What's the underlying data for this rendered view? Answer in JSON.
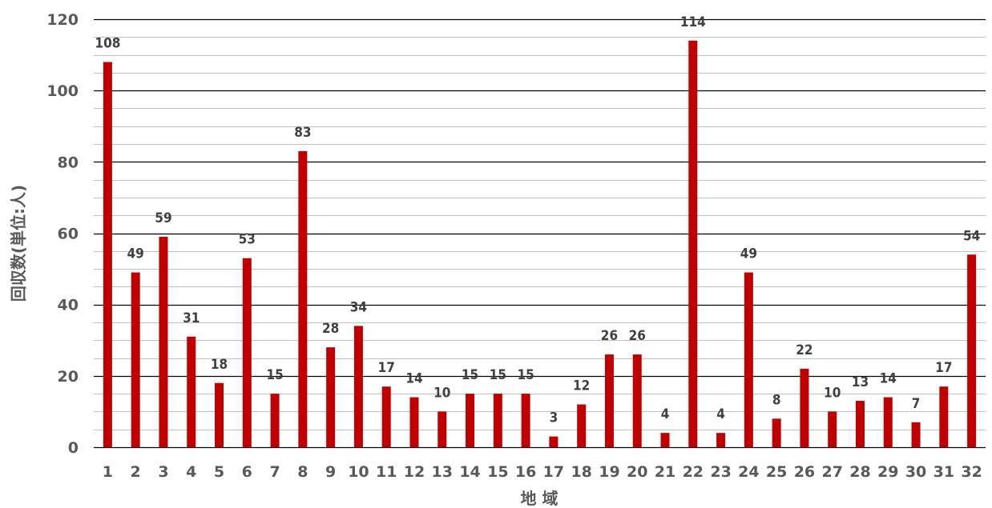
{
  "chart_data": {
    "type": "bar",
    "xlabel": "地 域",
    "ylabel": "回収数(単位:人)",
    "ylim": [
      0,
      120
    ],
    "y_major_step": 20,
    "y_minor_step": 5,
    "grid": true,
    "bar_color": "#C00000",
    "categories": [
      "1",
      "2",
      "3",
      "4",
      "5",
      "6",
      "7",
      "8",
      "9",
      "10",
      "11",
      "12",
      "13",
      "14",
      "15",
      "16",
      "17",
      "18",
      "19",
      "20",
      "21",
      "22",
      "23",
      "24",
      "25",
      "26",
      "27",
      "28",
      "29",
      "30",
      "31",
      "32"
    ],
    "values": [
      108,
      49,
      59,
      31,
      18,
      53,
      15,
      83,
      28,
      34,
      17,
      14,
      10,
      15,
      15,
      15,
      3,
      12,
      26,
      26,
      4,
      114,
      4,
      49,
      8,
      22,
      10,
      13,
      14,
      7,
      17,
      54
    ]
  }
}
